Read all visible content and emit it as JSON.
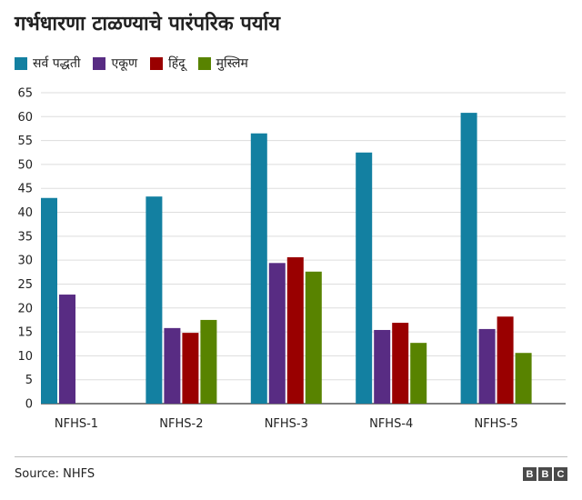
{
  "title": "गर्भधारणा टाळण्याचे पारंपरिक पर्याय",
  "source": "Source: NHFS",
  "logo_letters": [
    "B",
    "B",
    "C"
  ],
  "chart_data": {
    "type": "bar",
    "title": "गर्भधारणा टाळण्याचे पारंपरिक पर्याय",
    "xlabel": "",
    "ylabel": "",
    "categories": [
      "NFHS-1",
      "NFHS-2",
      "NFHS-3",
      "NFHS-4",
      "NFHS-5"
    ],
    "ylim": [
      0,
      65
    ],
    "yticks": [
      0,
      5,
      10,
      15,
      20,
      25,
      30,
      35,
      40,
      45,
      50,
      55,
      60,
      65
    ],
    "grid": true,
    "legend_position": "top",
    "series": [
      {
        "name": "सर्व पद्धती",
        "color": "#1380A1",
        "values": [
          43,
          43.3,
          56.5,
          52.5,
          60.8
        ]
      },
      {
        "name": "एकूण",
        "color": "#582C83",
        "values": [
          22.8,
          15.8,
          29.4,
          15.4,
          15.6
        ]
      },
      {
        "name": "हिंदू",
        "color": "#990000",
        "values": [
          null,
          14.8,
          30.6,
          16.9,
          18.2
        ]
      },
      {
        "name": "मुस्लिम",
        "color": "#588300",
        "values": [
          null,
          17.5,
          27.6,
          12.7,
          10.6
        ]
      }
    ]
  }
}
